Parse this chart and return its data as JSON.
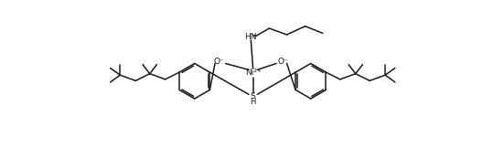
{
  "bg_color": "#ffffff",
  "line_color": "#1a1a1a",
  "line_width": 1.1,
  "fig_width": 5.39,
  "fig_height": 1.62,
  "dpi": 100,
  "ni_label": "Ni²⁺",
  "o_minus": "O⁻",
  "hn_label": "HN",
  "s_label": "S",
  "h_label": "H"
}
